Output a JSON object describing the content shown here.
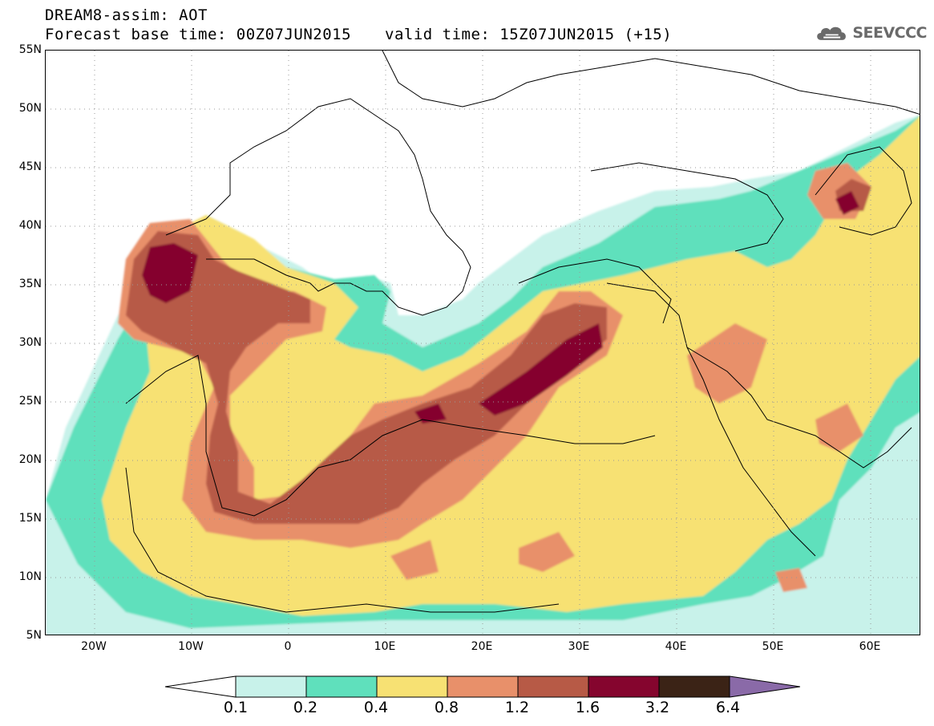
{
  "header": {
    "title_line1": "DREAM8-assim: AOT",
    "title_line2": "Forecast base time: 00Z07JUN2015",
    "valid_time": "valid time: 15Z07JUN2015 (+15)"
  },
  "logo": {
    "text": "SEEVCCC",
    "icon": "cloud-icon"
  },
  "map": {
    "lat_labels": [
      "55N",
      "50N",
      "45N",
      "40N",
      "35N",
      "30N",
      "25N",
      "20N",
      "15N",
      "10N",
      "5N"
    ],
    "lon_labels": [
      "20W",
      "10W",
      "0",
      "10E",
      "20E",
      "30E",
      "40E",
      "50E",
      "60E"
    ],
    "lon_range": [
      -25,
      65
    ],
    "lat_range": [
      5,
      55
    ],
    "gridlines": "dotted"
  },
  "legend": {
    "thresholds": [
      "0.1",
      "0.2",
      "0.4",
      "0.8",
      "1.2",
      "1.6",
      "3.2",
      "6.4"
    ],
    "colors": [
      "#ffffff",
      "#c8f2ea",
      "#5fe0bc",
      "#f7e173",
      "#e8906a",
      "#b75a46",
      "#85052e",
      "#3b2316",
      "#8a6aa8"
    ]
  },
  "colors": {
    "aot_01_02": "#c8f2ea",
    "aot_02_04": "#5fe0bc",
    "aot_04_08": "#f7e173",
    "aot_08_12": "#e8906a",
    "aot_12_16": "#b75a46",
    "aot_16_32": "#85052e"
  }
}
